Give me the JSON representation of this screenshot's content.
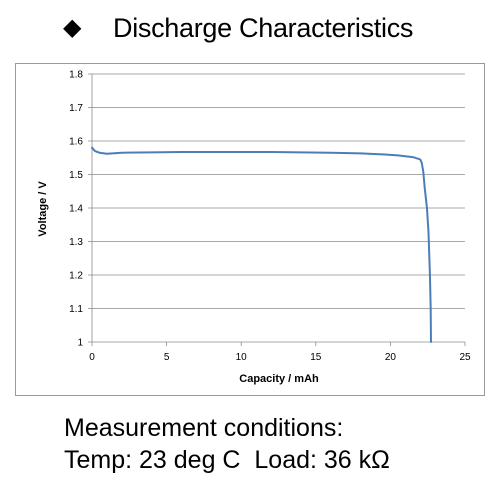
{
  "heading": {
    "bullet": "◆",
    "title": "Discharge Characteristics"
  },
  "conditions": {
    "line1": "Measurement conditions:",
    "line2": "Temp: 23 deg C  Load: 36 kΩ"
  },
  "chart_data": {
    "type": "line",
    "title": "",
    "xlabel": "Capacity  /  mAh",
    "ylabel": "Voltage  /  V",
    "xlim": [
      0,
      25
    ],
    "ylim": [
      1.0,
      1.8
    ],
    "xticks": [
      "0",
      "5",
      "10",
      "15",
      "20",
      "25"
    ],
    "yticks": [
      "1",
      "1.1",
      "1.2",
      "1.3",
      "1.4",
      "1.5",
      "1.6",
      "1.7",
      "1.8"
    ],
    "grid": "horizontal",
    "legend": "none",
    "line_color": "#4a7ebb",
    "series": [
      {
        "x": [
          0,
          0.2,
          0.5,
          1.0,
          2.0,
          4.0,
          6.0,
          8.0,
          10.0,
          12.0,
          14.0,
          16.0,
          18.0,
          19.5,
          20.5,
          21.5,
          22.0,
          22.1,
          22.2,
          22.3,
          22.45,
          22.55,
          22.65,
          22.7,
          22.72
        ],
        "y": [
          1.58,
          1.57,
          1.565,
          1.562,
          1.565,
          1.566,
          1.567,
          1.567,
          1.567,
          1.567,
          1.566,
          1.565,
          1.563,
          1.56,
          1.557,
          1.552,
          1.545,
          1.535,
          1.51,
          1.46,
          1.4,
          1.33,
          1.2,
          1.1,
          1.0
        ]
      }
    ]
  }
}
